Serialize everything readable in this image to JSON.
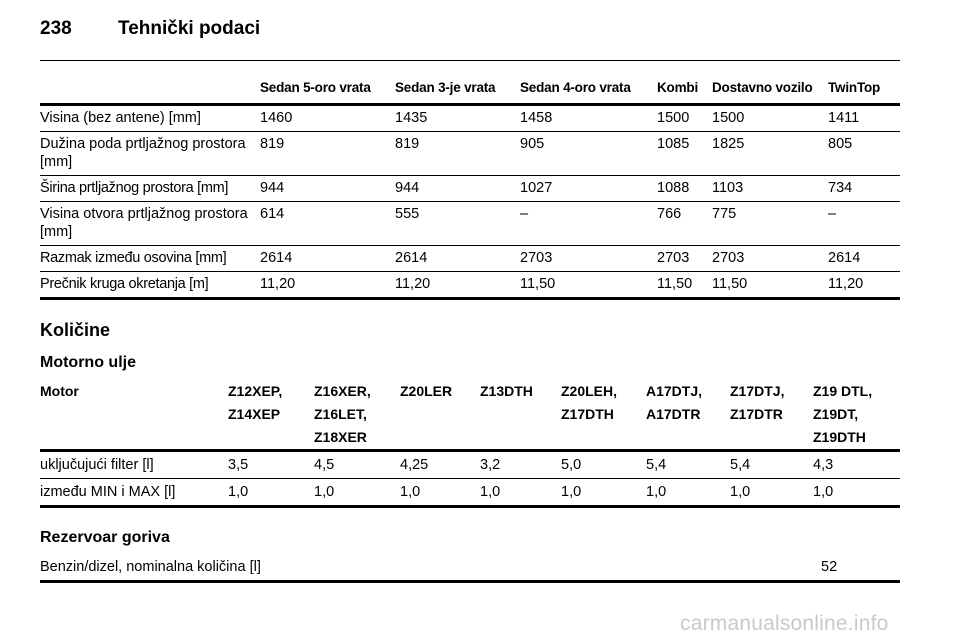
{
  "header": {
    "page_number": "238",
    "title": "Tehnički podaci"
  },
  "dimensions": {
    "columns": [
      "",
      "Sedan 5-oro vrata",
      "Sedan 3-je vrata",
      "Sedan 4-oro vrata",
      "Kombi",
      "Dostavno vozilo",
      "TwinTop"
    ],
    "rows": [
      [
        "Visina (bez antene) [mm]",
        "1460",
        "1435",
        "1458",
        "1500",
        "1500",
        "1411"
      ],
      [
        "Dužina poda prtljažnog prostora [mm]",
        "819",
        "819",
        "905",
        "1085",
        "1825",
        "805"
      ],
      [
        "Širina prtljažnog prostora [mm]",
        "944",
        "944",
        "1027",
        "1088",
        "1103",
        "734"
      ],
      [
        "Visina otvora prtljažnog prostora [mm]",
        "614",
        "555",
        "–",
        "766",
        "775",
        "–"
      ],
      [
        "Razmak između osovina [mm]",
        "2614",
        "2614",
        "2703",
        "2703",
        "2703",
        "2614"
      ],
      [
        "Prečnik kruga okretanja [m]",
        "11,20",
        "11,20",
        "11,50",
        "11,50",
        "11,50",
        "11,20"
      ]
    ]
  },
  "quantities": {
    "title": "Količine",
    "oil": {
      "title": "Motorno ulje",
      "columns": [
        [
          "Motor"
        ],
        [
          "Z12XEP,",
          "Z14XEP"
        ],
        [
          "Z16XER,",
          "Z16LET,",
          "Z18XER"
        ],
        [
          "Z20LER"
        ],
        [
          "Z13DTH"
        ],
        [
          "Z20LEH,",
          "Z17DTH"
        ],
        [
          "A17DTJ,",
          "A17DTR"
        ],
        [
          "Z17DTJ,",
          "Z17DTR"
        ],
        [
          "Z19 DTL,",
          "Z19DT,",
          "Z19DTH"
        ]
      ],
      "rows": [
        [
          "uključujući filter [l]",
          "3,5",
          "4,5",
          "4,25",
          "3,2",
          "5,0",
          "5,4",
          "5,4",
          "4,3"
        ],
        [
          "između MIN i MAX [l]",
          "1,0",
          "1,0",
          "1,0",
          "1,0",
          "1,0",
          "1,0",
          "1,0",
          "1,0"
        ]
      ]
    },
    "fuel": {
      "title": "Rezervoar goriva",
      "label": "Benzin/dizel, nominalna količina [l]",
      "value": "52"
    }
  },
  "watermark": "carmanualsonline.info"
}
